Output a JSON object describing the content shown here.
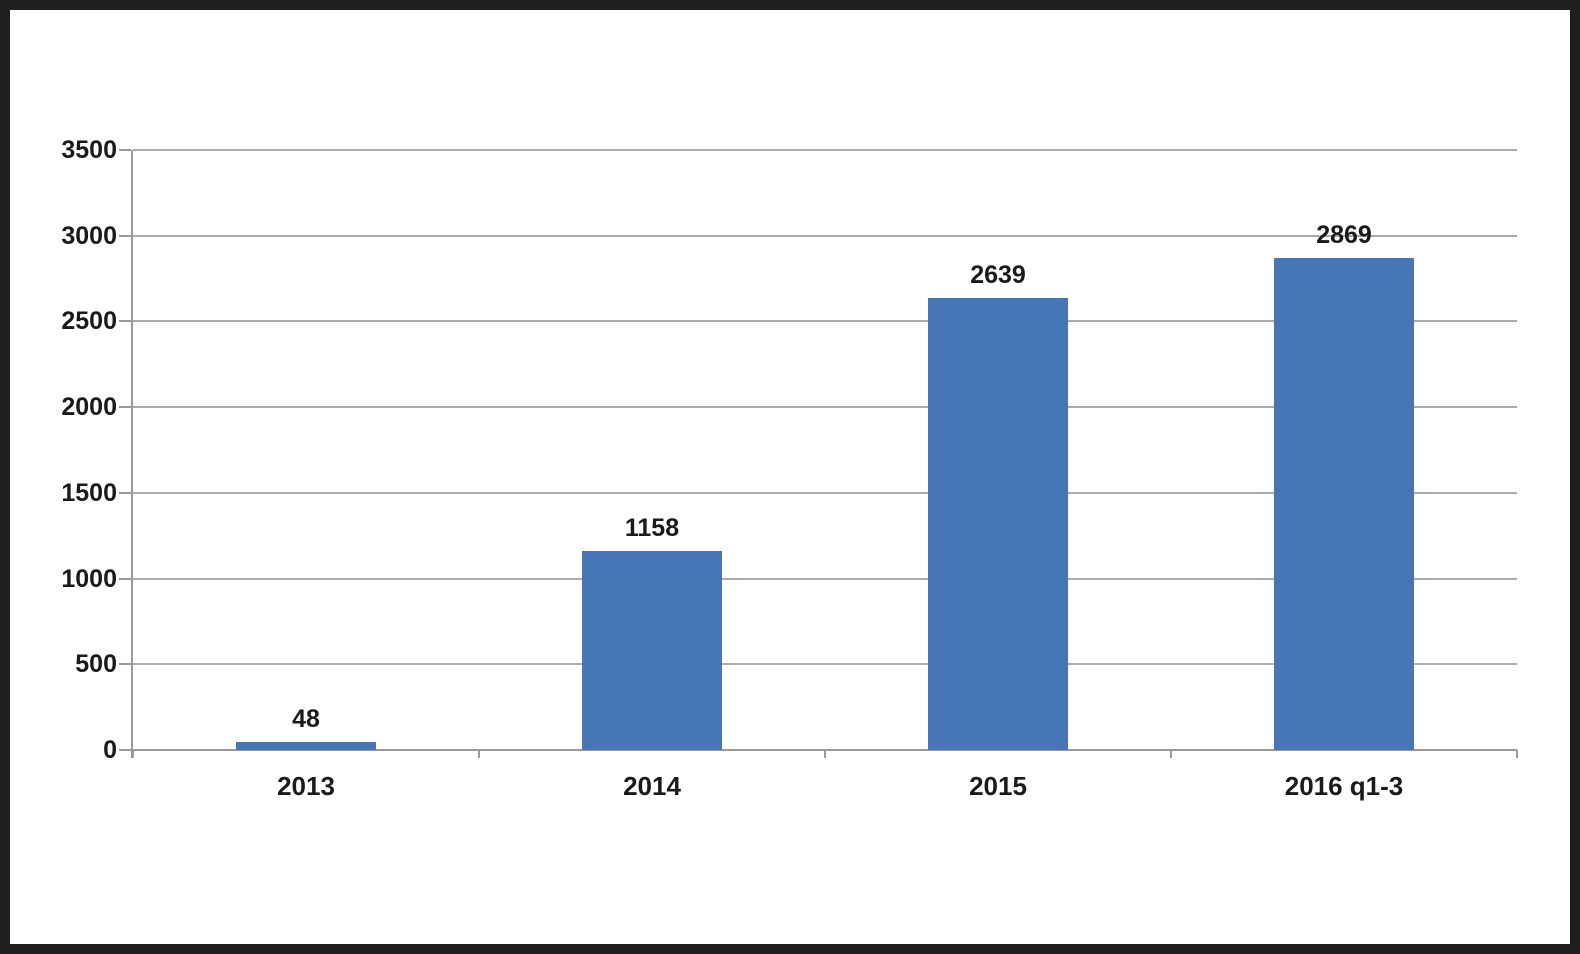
{
  "frame": {
    "border_color": "#1f1f1f",
    "background_color": "#ffffff"
  },
  "chart_data": {
    "type": "bar",
    "title": "",
    "xlabel": "",
    "ylabel": "",
    "categories": [
      "2013",
      "2014",
      "2015",
      "2016 q1-3"
    ],
    "values": [
      48,
      1158,
      2639,
      2869
    ],
    "value_labels": [
      "48",
      "1158",
      "2639",
      "2869"
    ],
    "ylim": [
      0,
      3500
    ],
    "yticks": [
      0,
      500,
      1000,
      1500,
      2000,
      2500,
      3000,
      3500
    ],
    "ytick_labels": [
      "0",
      "500",
      "1000",
      "1500",
      "2000",
      "2500",
      "3000",
      "3500"
    ],
    "grid": true,
    "legend": false,
    "data_labels_position": "above-bars",
    "colors": {
      "bar": "#4676B6",
      "gridline": "#ABABAB",
      "axis": "#999999",
      "text": "#1a1a1a"
    }
  }
}
